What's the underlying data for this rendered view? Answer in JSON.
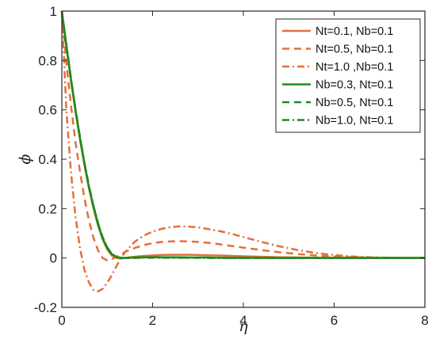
{
  "chart_data": {
    "type": "line",
    "title": "",
    "xlabel": "η",
    "ylabel": "ϕ",
    "xlim": [
      0,
      8
    ],
    "ylim": [
      -0.2,
      1
    ],
    "xticks": [
      "0",
      "2",
      "4",
      "6",
      "8"
    ],
    "yticks": [
      "-0.2",
      "0",
      "0.2",
      "0.4",
      "0.6",
      "0.8",
      "1"
    ],
    "grid": false,
    "legend_position": "top-right",
    "x": [
      0,
      0.1,
      0.2,
      0.3,
      0.4,
      0.5,
      0.6,
      0.7,
      0.8,
      0.9,
      1.0,
      1.1,
      1.2,
      1.3,
      1.4,
      1.5,
      1.6,
      1.8,
      2.0,
      2.2,
      2.4,
      2.6,
      2.8,
      3.0,
      3.2,
      3.5,
      3.8,
      4.0,
      4.4,
      4.8,
      5.2,
      5.6,
      6.0,
      6.4,
      6.8,
      7.2,
      7.6,
      8.0
    ],
    "series": [
      {
        "name": "Nt=0.1, Nb=0.1",
        "color": "#E2703A",
        "dash": "solid",
        "values": [
          1.0,
          0.855,
          0.72,
          0.595,
          0.48,
          0.375,
          0.28,
          0.2,
          0.13,
          0.075,
          0.035,
          0.01,
          0.0,
          -0.002,
          0.0,
          0.003,
          0.005,
          0.008,
          0.01,
          0.012,
          0.013,
          0.013,
          0.013,
          0.012,
          0.011,
          0.01,
          0.008,
          0.007,
          0.005,
          0.003,
          0.002,
          0.001,
          0.001,
          0.0,
          0.0,
          0.0,
          0.0,
          0.0
        ]
      },
      {
        "name": "Nt=0.5, Nb=0.1",
        "color": "#E2703A",
        "dash": "dashed",
        "values": [
          1.0,
          0.79,
          0.62,
          0.47,
          0.35,
          0.24,
          0.15,
          0.08,
          0.03,
          0.0,
          -0.01,
          -0.005,
          0.005,
          0.015,
          0.025,
          0.033,
          0.04,
          0.052,
          0.06,
          0.065,
          0.067,
          0.068,
          0.067,
          0.065,
          0.062,
          0.055,
          0.047,
          0.042,
          0.032,
          0.023,
          0.016,
          0.01,
          0.006,
          0.003,
          0.001,
          0.0,
          0.0,
          0.0
        ]
      },
      {
        "name": "Nt=1.0 ,Nb=0.1",
        "color": "#E2703A",
        "dash": "dashdot",
        "values": [
          1.0,
          0.6,
          0.35,
          0.17,
          0.04,
          -0.05,
          -0.1,
          -0.13,
          -0.135,
          -0.125,
          -0.1,
          -0.07,
          -0.035,
          0.0,
          0.025,
          0.045,
          0.065,
          0.09,
          0.107,
          0.118,
          0.125,
          0.128,
          0.127,
          0.124,
          0.118,
          0.108,
          0.095,
          0.085,
          0.065,
          0.047,
          0.032,
          0.02,
          0.012,
          0.006,
          0.003,
          0.001,
          0.0,
          0.0
        ]
      },
      {
        "name": "Nb=0.3, Nt=0.1",
        "color": "#1F8A1F",
        "dash": "solid",
        "values": [
          1.0,
          0.86,
          0.725,
          0.6,
          0.485,
          0.38,
          0.285,
          0.205,
          0.135,
          0.08,
          0.04,
          0.015,
          0.004,
          0.0,
          0.0,
          0.001,
          0.002,
          0.003,
          0.003,
          0.003,
          0.003,
          0.003,
          0.002,
          0.002,
          0.002,
          0.001,
          0.001,
          0.001,
          0.0,
          0.0,
          0.0,
          0.0,
          0.0,
          0.0,
          0.0,
          0.0,
          0.0,
          0.0
        ]
      },
      {
        "name": "Nb=0.5, Nt=0.1",
        "color": "#1F8A1F",
        "dash": "dashed",
        "values": [
          1.0,
          0.862,
          0.728,
          0.603,
          0.488,
          0.383,
          0.288,
          0.208,
          0.138,
          0.082,
          0.042,
          0.016,
          0.004,
          0.0,
          0.0,
          0.0,
          0.001,
          0.002,
          0.002,
          0.002,
          0.002,
          0.002,
          0.001,
          0.001,
          0.001,
          0.001,
          0.0,
          0.0,
          0.0,
          0.0,
          0.0,
          0.0,
          0.0,
          0.0,
          0.0,
          0.0,
          0.0,
          0.0
        ]
      },
      {
        "name": "Nb=1.0, Nt=0.1",
        "color": "#1F8A1F",
        "dash": "dashdot",
        "values": [
          1.0,
          0.864,
          0.73,
          0.605,
          0.49,
          0.385,
          0.29,
          0.21,
          0.14,
          0.084,
          0.043,
          0.017,
          0.005,
          0.001,
          0.0,
          0.0,
          0.0,
          0.001,
          0.001,
          0.001,
          0.001,
          0.001,
          0.001,
          0.001,
          0.0,
          0.0,
          0.0,
          0.0,
          0.0,
          0.0,
          0.0,
          0.0,
          0.0,
          0.0,
          0.0,
          0.0,
          0.0,
          0.0
        ]
      }
    ]
  }
}
